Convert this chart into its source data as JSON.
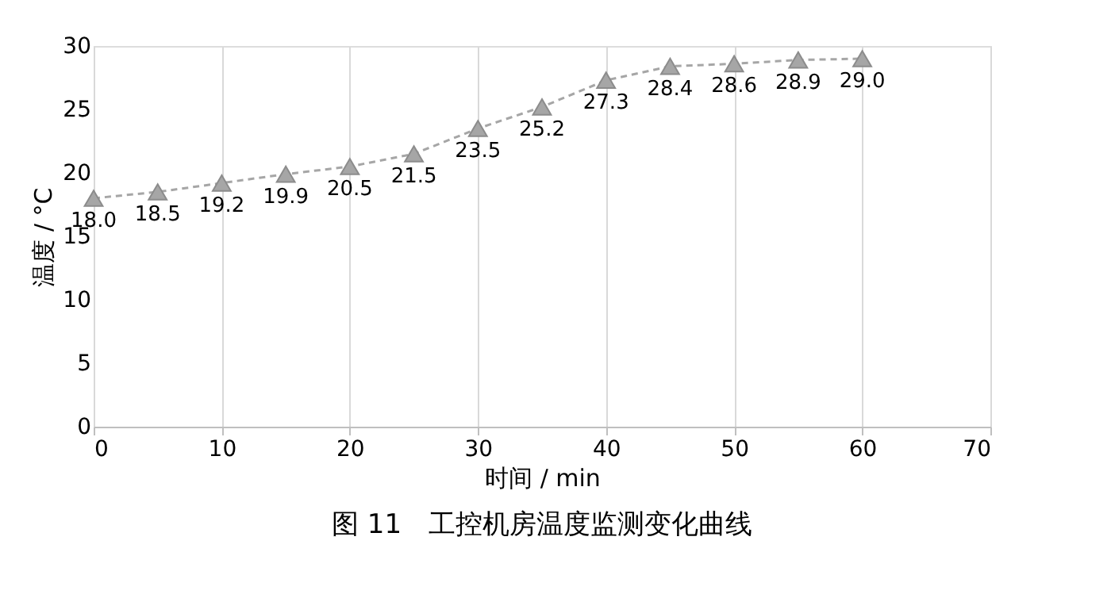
{
  "chart_data": {
    "type": "line",
    "title": "图 11　工控机房温度监测变化曲线",
    "xlabel": "时间 / min",
    "ylabel": "温度 / °C",
    "x": [
      0,
      5,
      10,
      15,
      20,
      25,
      30,
      35,
      40,
      45,
      50,
      55,
      60
    ],
    "series": [
      {
        "color": "#a6a6a6",
        "values": [
          18.0,
          18.5,
          19.2,
          19.9,
          20.5,
          21.5,
          23.5,
          25.2,
          27.3,
          28.4,
          28.6,
          28.9,
          29.0
        ],
        "value_labels": [
          "18.0",
          "18.5",
          "19.2",
          "19.9",
          "20.5",
          "21.5",
          "23.5",
          "25.2",
          "27.3",
          "28.4",
          "28.6",
          "28.9",
          "29.0"
        ]
      }
    ],
    "xlim": [
      0,
      70
    ],
    "xticks": [
      0,
      10,
      20,
      30,
      40,
      50,
      60,
      70
    ],
    "ylim": [
      0,
      30
    ],
    "yticks": [
      0,
      5,
      10,
      15,
      20,
      25,
      30
    ],
    "grid": "x",
    "marker": "triangle",
    "line_style": "dashed"
  }
}
